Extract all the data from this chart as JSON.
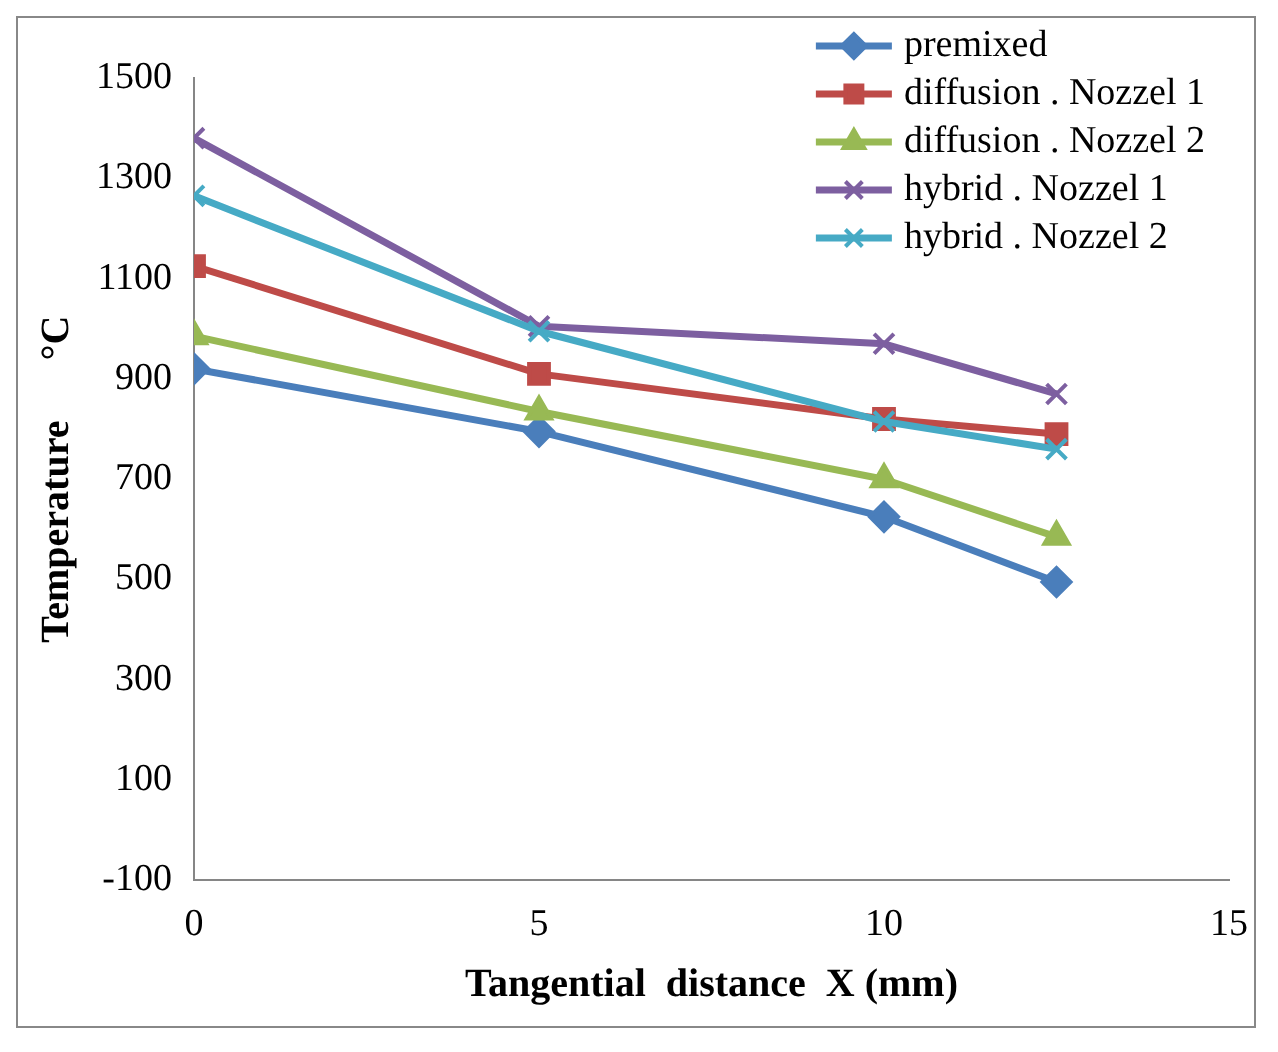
{
  "chart_data": {
    "type": "line",
    "xlabel": "Tangential  distance  X (mm)",
    "ylabel": "Temperature      °C",
    "x": [
      0,
      5,
      10,
      12.5
    ],
    "xlim": [
      0,
      15
    ],
    "xticks": [
      0,
      5,
      10,
      15
    ],
    "ylim": [
      -100,
      1500
    ],
    "yticks": [
      -100,
      100,
      300,
      500,
      700,
      900,
      1100,
      1300,
      1500
    ],
    "grid": false,
    "legend": "top right",
    "line_style": "solid",
    "series": [
      {
        "name": "premixed",
        "color": "#4a7ebb",
        "marker": "diamond",
        "values": [
          920,
          795,
          625,
          495
        ]
      },
      {
        "name": "diffusion . Nozzel 1",
        "color": "#be4b48",
        "marker": "square",
        "values": [
          1125,
          910,
          820,
          790
        ]
      },
      {
        "name": "diffusion . Nozzel 2",
        "color": "#98b954",
        "marker": "triangle",
        "values": [
          985,
          835,
          700,
          585
        ]
      },
      {
        "name": "hybrid . Nozzel 1",
        "color": "#7d5fa0",
        "marker": "cross",
        "values": [
          1380,
          1005,
          970,
          870
        ]
      },
      {
        "name": "hybrid . Nozzel 2",
        "color": "#46aac5",
        "marker": "cross",
        "values": [
          1265,
          995,
          815,
          760
        ]
      }
    ]
  }
}
